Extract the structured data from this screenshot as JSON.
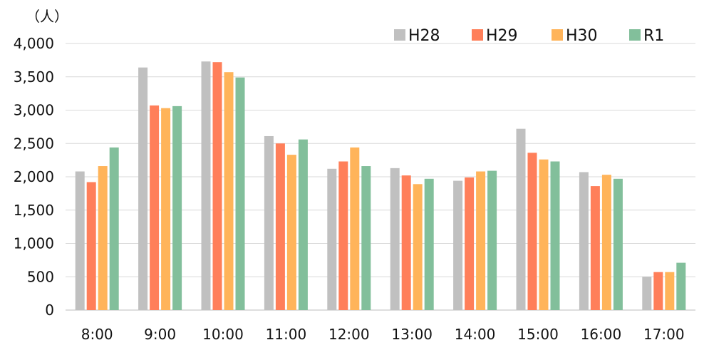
{
  "chart_data": {
    "type": "bar",
    "unit_label": "（人）",
    "categories": [
      "8:00",
      "9:00",
      "10:00",
      "11:00",
      "12:00",
      "13:00",
      "14:00",
      "15:00",
      "16:00",
      "17:00"
    ],
    "series": [
      {
        "name": "H28",
        "color": "#c0c0c0",
        "values": [
          2080,
          3640,
          3730,
          2610,
          2120,
          2130,
          1940,
          2720,
          2070,
          500
        ]
      },
      {
        "name": "H29",
        "color": "#ff7f5a",
        "values": [
          1920,
          3070,
          3720,
          2500,
          2230,
          2020,
          1990,
          2360,
          1860,
          570
        ]
      },
      {
        "name": "H30",
        "color": "#ffb45a",
        "values": [
          2160,
          3030,
          3570,
          2330,
          2440,
          1890,
          2080,
          2260,
          2030,
          570
        ]
      },
      {
        "name": "R1",
        "color": "#82bf9b",
        "values": [
          2440,
          3060,
          3490,
          2560,
          2160,
          1970,
          2090,
          2230,
          1970,
          710
        ]
      }
    ],
    "yticks": [
      "0",
      "500",
      "1,000",
      "1,500",
      "2,000",
      "2,500",
      "3,000",
      "3,500",
      "4,000"
    ],
    "ylim": [
      0,
      4000
    ],
    "ytick_step": 500,
    "grid": true,
    "legend_position": "top-right"
  }
}
